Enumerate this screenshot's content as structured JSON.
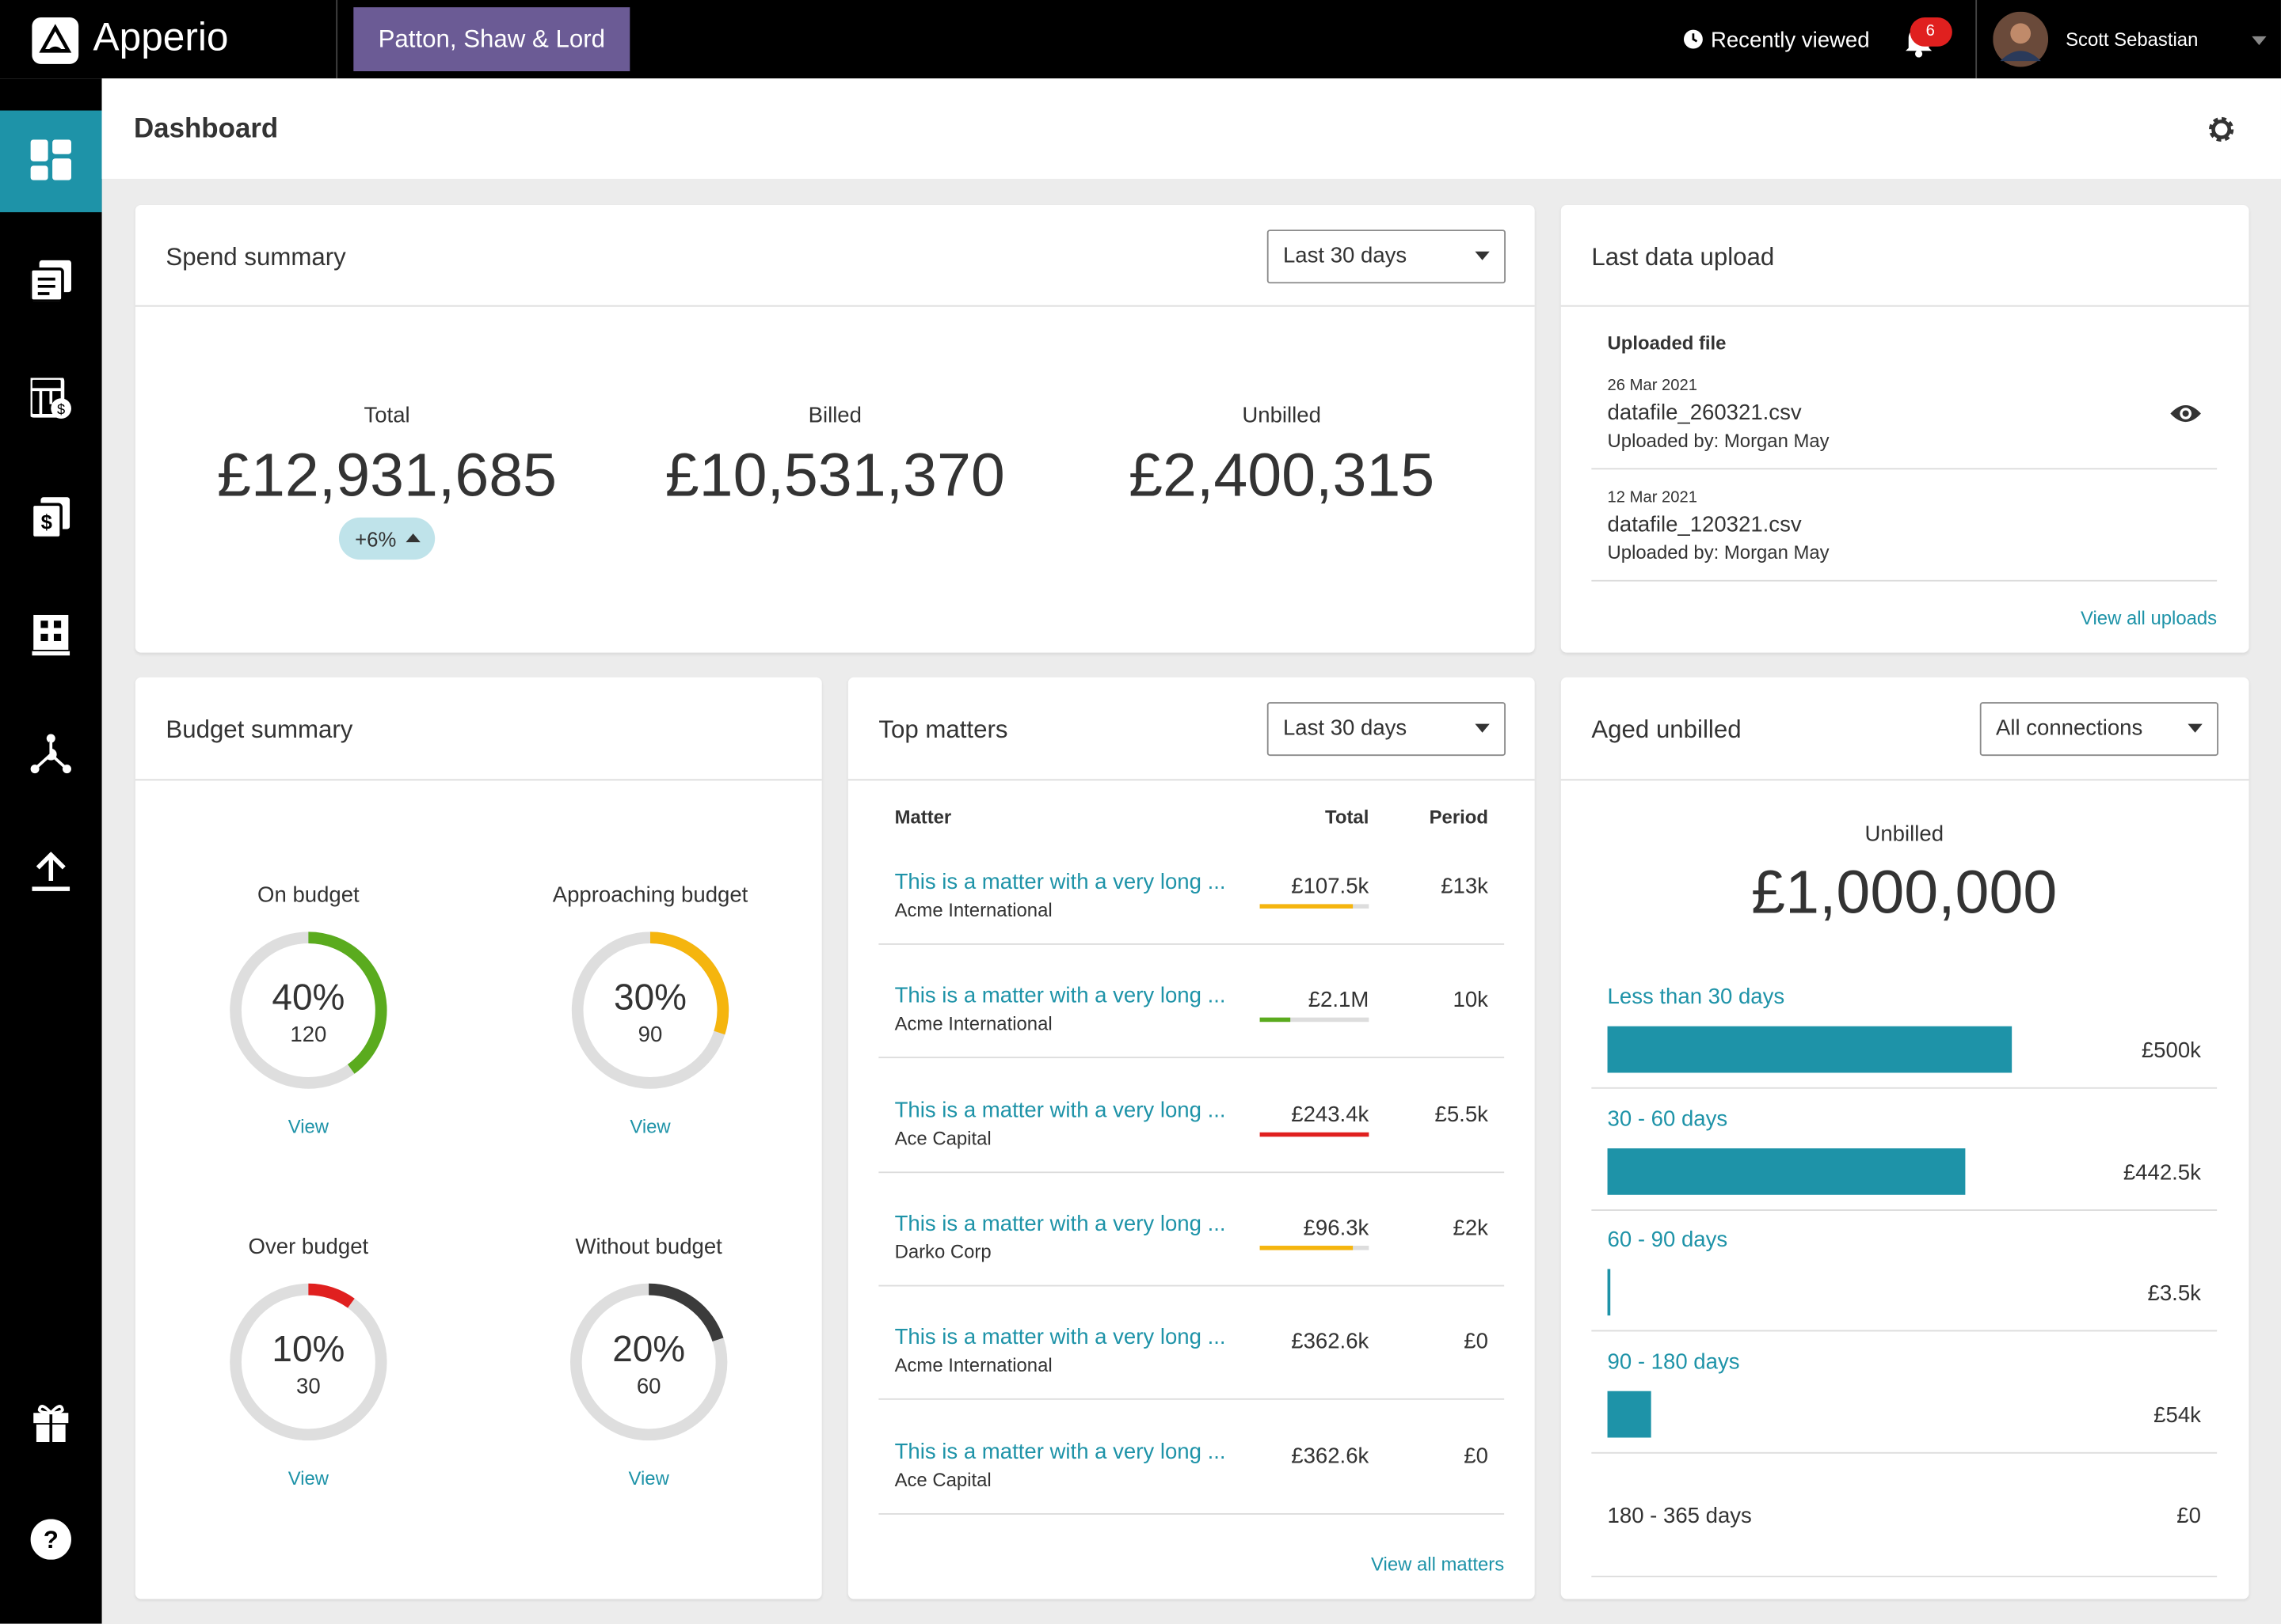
{
  "header": {
    "brand": "Apperio",
    "client": "Patton, Shaw & Lord",
    "recently_viewed": "Recently viewed",
    "notifications": "6",
    "user": "Scott Sebastian"
  },
  "page": {
    "title": "Dashboard"
  },
  "spend_summary": {
    "title": "Spend summary",
    "period": "Last 30 days",
    "items": [
      {
        "label": "Total",
        "amount": "£12,931,685"
      },
      {
        "label": "Billed",
        "amount": "£10,531,370"
      },
      {
        "label": "Unbilled",
        "amount": "£2,400,315"
      }
    ],
    "change": "+6%"
  },
  "last_upload": {
    "title": "Last data upload",
    "heading": "Uploaded file",
    "files": [
      {
        "date": "26 Mar 2021",
        "name": "datafile_260321.csv",
        "by": "Uploaded by: Morgan May"
      },
      {
        "date": "12 Mar 2021",
        "name": "datafile_120321.csv",
        "by": "Uploaded by: Morgan May"
      }
    ],
    "link": "View all uploads"
  },
  "budget_summary": {
    "title": "Budget summary",
    "items": [
      {
        "label": "On budget",
        "percent": {
          "value": 40,
          "label": "40%"
        },
        "count": 120,
        "color": "#5aab1e",
        "link": "View"
      },
      {
        "label": "Approaching budget",
        "percent": {
          "value": 30,
          "label": "30%"
        },
        "count": 90,
        "color": "#f5b50e",
        "link": "View"
      },
      {
        "label": "Over budget",
        "percent": {
          "value": 10,
          "label": "10%"
        },
        "count": 30,
        "color": "#e0201f",
        "link": "View"
      },
      {
        "label": "Without budget",
        "percent": {
          "value": 20,
          "label": "20%"
        },
        "count": 60,
        "color": "#3b3b3b",
        "link": "View"
      }
    ]
  },
  "top_matters": {
    "title": "Top matters",
    "period": "Last 30 days",
    "columns": [
      "Matter",
      "Total",
      "Period"
    ],
    "rows": [
      {
        "matter": "This is a matter with a very long ...",
        "client": "Acme International",
        "total": "£107.5k",
        "period": "£13k"
      },
      {
        "matter": "This is a matter with a very long ...",
        "client": "Acme International",
        "total": "£2.1M",
        "period": "10k"
      },
      {
        "matter": "This is a matter with a very long ...",
        "client": "Ace Capital",
        "total": "£243.4k",
        "period": "£5.5k"
      },
      {
        "matter": "This is a matter with a very long ...",
        "client": "Darko Corp",
        "total": "£96.3k",
        "period": "£2k"
      },
      {
        "matter": "This is a matter with a very long ...",
        "client": "Acme International",
        "total": "£362.6k",
        "period": "£0"
      },
      {
        "matter": "This is a matter with a very long ...",
        "client": "Ace Capital",
        "total": "£362.6k",
        "period": "£0"
      }
    ],
    "link": "View all matters"
  },
  "aged_unbilled": {
    "title": "Aged unbilled",
    "filter": "All connections",
    "label": "Unbilled",
    "amount": "£1,000,000",
    "color": "#1e93a8",
    "buckets": [
      {
        "label": "Less than 30 days",
        "value": 500000,
        "value_label": "£500k"
      },
      {
        "label": "30 - 60 days",
        "value": 442500,
        "value_label": "£442.5k"
      },
      {
        "label": "60 - 90 days",
        "value": 3500,
        "value_label": "£3.5k"
      },
      {
        "label": "90 - 180 days",
        "value": 54000,
        "value_label": "£54k"
      },
      {
        "label": "180 - 365 days",
        "value": 0,
        "value_label": "£0"
      }
    ]
  }
}
